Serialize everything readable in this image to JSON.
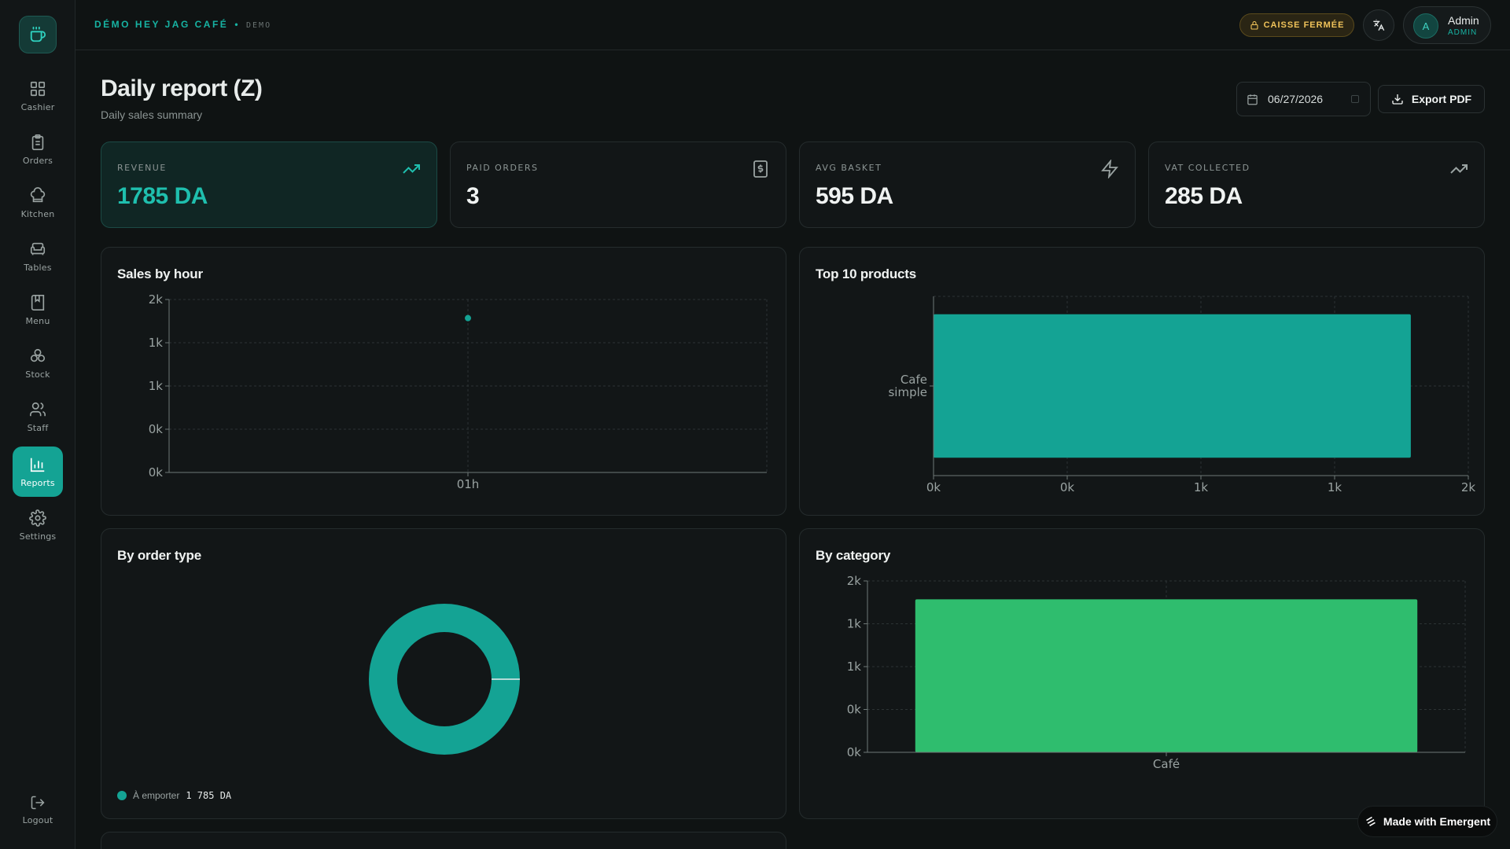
{
  "brand": {
    "name": "DÉMO HEY JAG CAFÉ",
    "separator": "•",
    "badge": "DEMO"
  },
  "topbar": {
    "register_status": "CAISSE FERMÉE",
    "user_initial": "A",
    "user_name": "Admin",
    "user_role": "ADMIN"
  },
  "sidebar": {
    "items": [
      {
        "label": "Cashier",
        "icon": "grid-icon"
      },
      {
        "label": "Orders",
        "icon": "clipboard-icon"
      },
      {
        "label": "Kitchen",
        "icon": "chef-hat-icon"
      },
      {
        "label": "Tables",
        "icon": "armchair-icon"
      },
      {
        "label": "Menu",
        "icon": "book-icon"
      },
      {
        "label": "Stock",
        "icon": "boxes-icon"
      },
      {
        "label": "Staff",
        "icon": "users-icon"
      },
      {
        "label": "Reports",
        "icon": "bar-chart-icon",
        "active": true
      },
      {
        "label": "Settings",
        "icon": "gear-icon"
      }
    ],
    "logout_label": "Logout"
  },
  "header": {
    "title": "Daily report (Z)",
    "subtitle": "Daily sales summary",
    "date_value": "06/27/2026",
    "export_label": "Export PDF"
  },
  "stats": [
    {
      "label": "REVENUE",
      "value": "1785 DA",
      "icon": "trending-up-icon"
    },
    {
      "label": "PAID ORDERS",
      "value": "3",
      "icon": "receipt-icon"
    },
    {
      "label": "AVG BASKET",
      "value": "595 DA",
      "icon": "zap-icon"
    },
    {
      "label": "VAT COLLECTED",
      "value": "285 DA",
      "icon": "trending-up-icon"
    }
  ],
  "panels": {
    "sales_by_hour": "Sales by hour",
    "top_products": "Top 10 products",
    "by_order_type": "By order type",
    "by_category": "By category"
  },
  "legend": {
    "order_type_label": "À emporter",
    "order_type_value": "1 785 DA"
  },
  "colors": {
    "accent": "#14a394",
    "category_bar": "#2fbd6e",
    "warning": "#f0c35a"
  },
  "made_with": "Made with Emergent",
  "chart_data": [
    {
      "type": "scatter",
      "title": "Sales by hour",
      "x": [
        "01h"
      ],
      "series": [
        {
          "values": [
            1785
          ]
        }
      ],
      "ylim": [
        0,
        2000
      ],
      "ytick_labels": [
        "0k",
        "0k",
        "1k",
        "1k",
        "2k"
      ],
      "grid": true
    },
    {
      "type": "bar",
      "orientation": "horizontal",
      "title": "Top 10 products",
      "categories": [
        "Cafe simple"
      ],
      "values": [
        1785
      ],
      "xlim": [
        0,
        2000
      ],
      "xtick_labels": [
        "0k",
        "0k",
        "1k",
        "1k",
        "2k"
      ],
      "grid": true
    },
    {
      "type": "pie",
      "donut": true,
      "title": "By order type",
      "labels": [
        "À emporter"
      ],
      "values": [
        1785
      ]
    },
    {
      "type": "bar",
      "title": "By category",
      "categories": [
        "Café"
      ],
      "values": [
        1785
      ],
      "ylim": [
        0,
        2000
      ],
      "ytick_labels": [
        "0k",
        "0k",
        "1k",
        "1k",
        "2k"
      ],
      "grid": true
    }
  ]
}
